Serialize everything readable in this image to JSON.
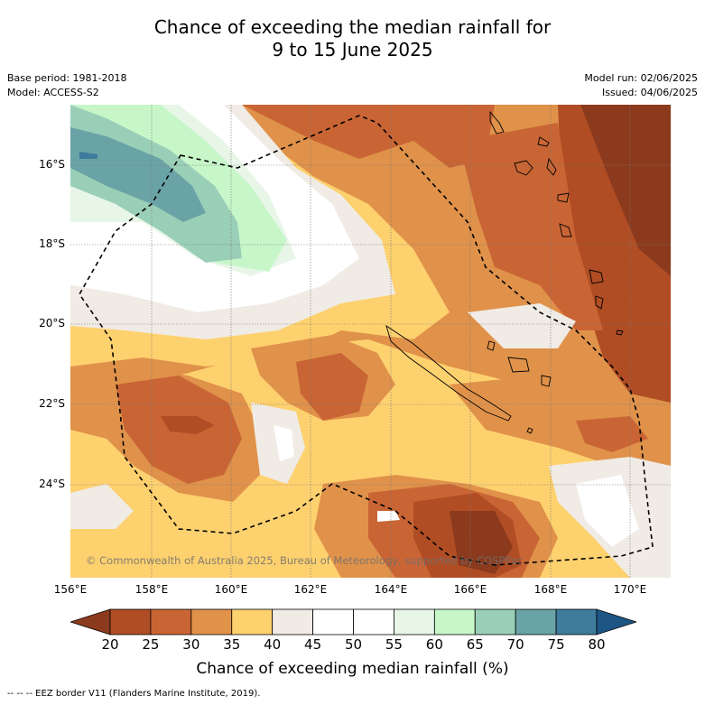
{
  "title_line1": "Chance of exceeding the median rainfall for",
  "title_line2": "9 to 15 June 2025",
  "base_period": "Base period: 1981-2018",
  "model": "Model: ACCESS-S2",
  "model_run": "Model run: 02/06/2025",
  "issued": "Issued: 04/06/2025",
  "copyright": "© Commonwealth of Australia 2025, Bureau of Meteorology, supported by COSPPac",
  "lat_labels": [
    "16°S",
    "18°S",
    "20°S",
    "22°S",
    "24°S"
  ],
  "lon_labels": [
    "156°E",
    "158°E",
    "160°E",
    "162°E",
    "164°E",
    "166°E",
    "168°E",
    "170°E"
  ],
  "colorbar": {
    "title": "Chance of exceeding median rainfall (%)",
    "ticks": [
      "20",
      "25",
      "30",
      "35",
      "40",
      "45",
      "50",
      "55",
      "60",
      "65",
      "70",
      "75",
      "80"
    ],
    "colors": [
      "#8c3a1d",
      "#b04d24",
      "#c96535",
      "#e0924a",
      "#fed16f",
      "#f0ebe4",
      "#ffffff",
      "#ffffff",
      "#e8f6e8",
      "#c7f7c9",
      "#9acfb7",
      "#6aa3a6",
      "#3e7b9d",
      "#1d5685"
    ]
  },
  "legend": "--  --  -- EEZ border V11 (Flanders Marine Institute, 2019)."
}
